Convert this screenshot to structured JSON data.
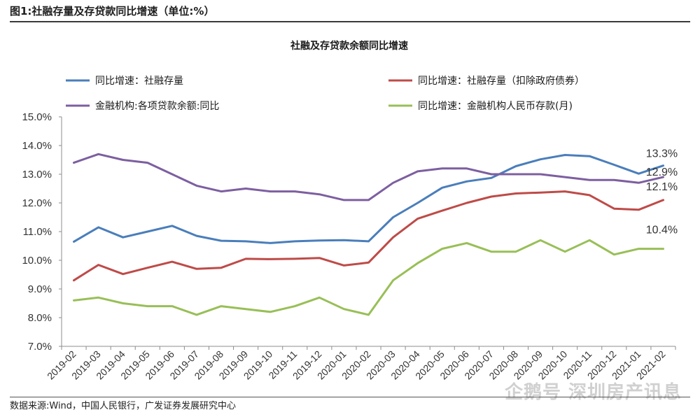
{
  "figure_header": "图1:社融存量及存贷款同比增速（单位:%）",
  "source": "数据来源:Wind，中国人民银行，广发证券发展研究中心",
  "watermark": "企鹅号 深圳房产讯息",
  "chart_data": {
    "type": "line",
    "title": "社融及存贷款余额同比增速",
    "xlabel": "",
    "ylabel": "",
    "ylim": [
      7.0,
      15.0
    ],
    "yticks": [
      "7.0%",
      "8.0%",
      "9.0%",
      "10.0%",
      "11.0%",
      "12.0%",
      "13.0%",
      "14.0%",
      "15.0%"
    ],
    "grid": false,
    "legend_position": "top",
    "categories": [
      "2019-02",
      "2019-03",
      "2019-04",
      "2019-05",
      "2019-06",
      "2019-07",
      "2019-08",
      "2019-09",
      "2019-10",
      "2019-11",
      "2019-12",
      "2020-01",
      "2020-02",
      "2020-03",
      "2020-04",
      "2020-05",
      "2020-06",
      "2020-07",
      "2020-08",
      "2020-09",
      "2020-10",
      "2020-11",
      "2020-12",
      "2021-01",
      "2021-02"
    ],
    "series": [
      {
        "name": "同比增速：社融存量",
        "color": "#4a7ebb",
        "values": [
          10.65,
          11.15,
          10.8,
          11.0,
          11.2,
          10.85,
          10.68,
          10.66,
          10.6,
          10.66,
          10.69,
          10.7,
          10.66,
          11.5,
          12.0,
          12.53,
          12.75,
          12.87,
          13.28,
          13.52,
          13.67,
          13.63,
          13.33,
          13.02,
          13.3
        ],
        "end_label": "13.3%"
      },
      {
        "name": "同比增速：社融存量（扣除政府债券）",
        "color": "#be4b48",
        "values": [
          9.3,
          9.84,
          9.52,
          9.74,
          9.95,
          9.7,
          9.74,
          10.05,
          10.04,
          10.05,
          10.08,
          9.82,
          9.92,
          10.8,
          11.45,
          11.73,
          12.0,
          12.22,
          12.33,
          12.36,
          12.4,
          12.27,
          11.8,
          11.76,
          12.1
        ],
        "end_label": "12.1%"
      },
      {
        "name": "金融机构:各项贷款余额:同比",
        "color": "#7d5fa0",
        "values": [
          13.4,
          13.7,
          13.5,
          13.4,
          13.0,
          12.6,
          12.4,
          12.5,
          12.4,
          12.4,
          12.3,
          12.1,
          12.1,
          12.7,
          13.1,
          13.2,
          13.2,
          13.0,
          13.0,
          13.0,
          12.9,
          12.8,
          12.8,
          12.7,
          12.9
        ],
        "end_label": "12.9%"
      },
      {
        "name": "同比增速：金融机构人民币存款(月)",
        "color": "#98bf57",
        "values": [
          8.6,
          8.7,
          8.5,
          8.4,
          8.4,
          8.1,
          8.4,
          8.3,
          8.2,
          8.4,
          8.7,
          8.3,
          8.1,
          9.3,
          9.9,
          10.4,
          10.6,
          10.3,
          10.3,
          10.7,
          10.3,
          10.7,
          10.2,
          10.4,
          10.4
        ],
        "end_label": "10.4%"
      }
    ]
  }
}
